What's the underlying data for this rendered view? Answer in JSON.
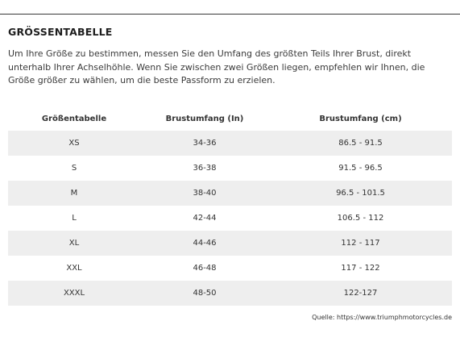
{
  "title": "GRÖSSENTABELLE",
  "intro": "Um Ihre Größe zu bestimmen, messen Sie den Umfang des größten Teils Ihrer Brust, direkt unterhalb Ihrer Achselhöhle. Wenn Sie zwischen zwei Größen liegen, empfehlen wir Ihnen, die Größe größer zu wählen, um die beste Passform zu erzielen.",
  "table": {
    "headers": [
      "Größentabelle",
      "Brustumfang (In)",
      "Brustumfang (cm)"
    ],
    "rows": [
      [
        "XS",
        "34-36",
        "86.5 - 91.5"
      ],
      [
        "S",
        "36-38",
        "91.5 - 96.5"
      ],
      [
        "M",
        "38-40",
        "96.5 - 101.5"
      ],
      [
        "L",
        "42-44",
        "106.5 - 112"
      ],
      [
        "XL",
        "44-46",
        "112 - 117"
      ],
      [
        "XXL",
        "46-48",
        "117 - 122"
      ],
      [
        "XXXL",
        "48-50",
        "122-127"
      ]
    ]
  },
  "source": "Quelle: https://www.triumphmotorcycles.de",
  "colors": {
    "stripe": "#eeeeee",
    "rule": "#3a3a3a",
    "text": "#333333"
  }
}
